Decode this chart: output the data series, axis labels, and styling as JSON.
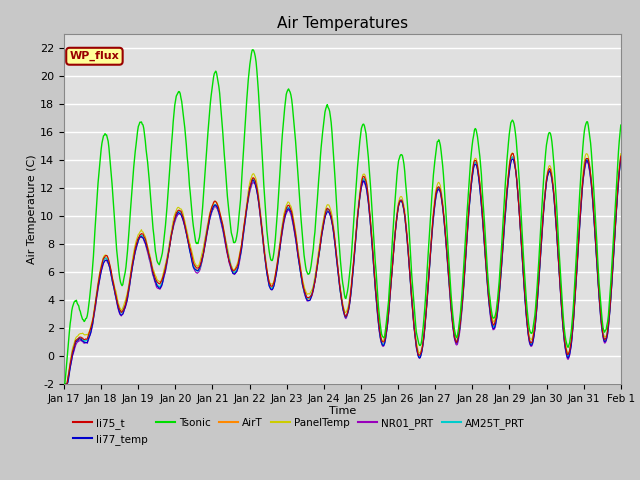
{
  "title": "Air Temperatures",
  "xlabel": "Time",
  "ylabel": "Air Temperature (C)",
  "ylim": [
    -2,
    23
  ],
  "yticks": [
    -2,
    0,
    2,
    4,
    6,
    8,
    10,
    12,
    14,
    16,
    18,
    20,
    22
  ],
  "series_colors": {
    "li75_t": "#cc0000",
    "li77_temp": "#0000cc",
    "Tsonic": "#00dd00",
    "AirT": "#ff8800",
    "PanelTemp": "#cccc00",
    "NR01_PRT": "#9900bb",
    "AM25T_PRT": "#00cccc"
  },
  "series_lw": {
    "li75_t": 0.8,
    "li77_temp": 0.8,
    "Tsonic": 1.0,
    "AirT": 0.8,
    "PanelTemp": 0.8,
    "NR01_PRT": 0.8,
    "AM25T_PRT": 1.0
  },
  "wp_flux_label": "WP_flux",
  "wp_flux_color": "#990000",
  "wp_flux_bg": "#ffff99",
  "background_color": "#e0e0e0",
  "grid_color": "#ffffff",
  "tick_labels": [
    "Jan 17",
    "Jan 18",
    "Jan 19",
    "Jan 20",
    "Jan 21",
    "Jan 22",
    "Jan 23",
    "Jan 24",
    "Jan 25",
    "Jan 26",
    "Jan 27",
    "Jan 28",
    "Jan 29",
    "Jan 30",
    "Jan 31",
    "Feb 1"
  ],
  "legend_order": [
    "li75_t",
    "li77_temp",
    "Tsonic",
    "AirT",
    "PanelTemp",
    "NR01_PRT",
    "AM25T_PRT"
  ]
}
